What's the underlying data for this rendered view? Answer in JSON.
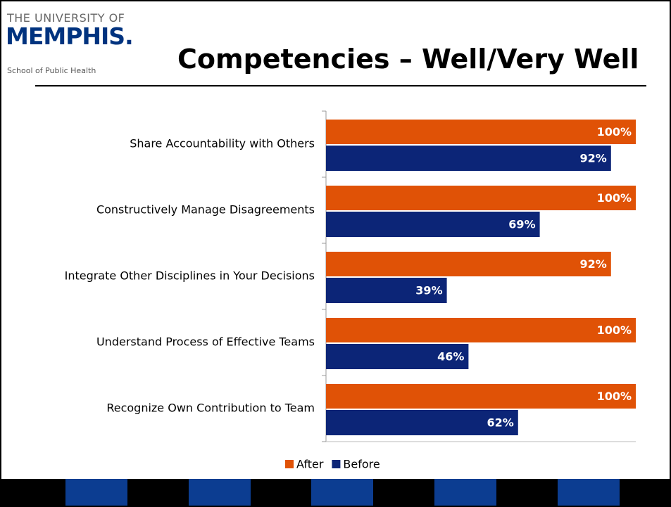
{
  "logo": {
    "line1": "THE UNIVERSITY OF",
    "line2": "MEMPHIS.",
    "line3": "School of Public Health"
  },
  "chart_data": {
    "type": "bar",
    "orientation": "horizontal",
    "title": "Competencies – Well/Very Well",
    "categories": [
      "Share Accountability with Others",
      "Constructively Manage Disagreements",
      "Integrate Other Disciplines in Your Decisions",
      "Understand Process of Effective Teams",
      "Recognize Own Contribution to Team"
    ],
    "series": [
      {
        "name": "After",
        "color": "#e05206",
        "values": [
          100,
          100,
          92,
          100,
          100
        ],
        "value_labels": [
          "100%",
          "100%",
          "92%",
          "100%",
          "100%"
        ]
      },
      {
        "name": "Before",
        "color": "#0c2577",
        "values": [
          92,
          69,
          39,
          46,
          62
        ],
        "value_labels": [
          "92%",
          "69%",
          "39%",
          "46%",
          "62%"
        ]
      }
    ],
    "xlim": [
      0,
      100
    ],
    "legend": "bottom"
  }
}
